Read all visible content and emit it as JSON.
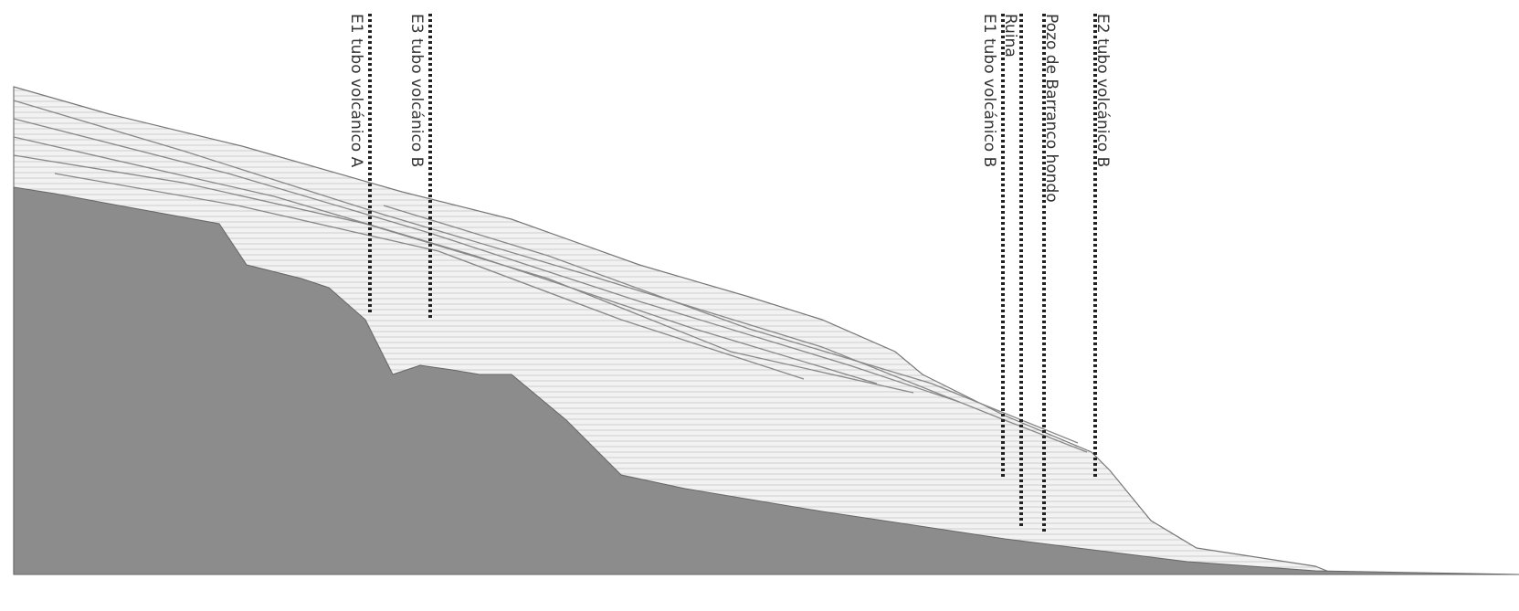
{
  "labels": [
    "E1 tubo volcánico A",
    "E3 tubo volcánico B",
    "E1 tubo volcánico B",
    "Ruina",
    "Pozo de Barranco hondo",
    "E2 tubo volcánico B"
  ]
}
